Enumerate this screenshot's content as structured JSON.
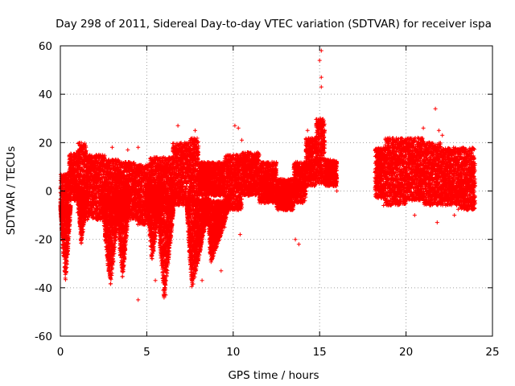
{
  "chart_data": {
    "type": "scatter",
    "title": "Day 298 of 2011, Sidereal Day-to-day VTEC variation (SDTVAR) for receiver ispa",
    "xlabel": "GPS time / hours",
    "ylabel": "SDTVAR / TECUs",
    "xlim": [
      0,
      25
    ],
    "ylim": [
      -60,
      60
    ],
    "xticks": [
      0,
      5,
      10,
      15,
      20,
      25
    ],
    "yticks": [
      -60,
      -40,
      -20,
      0,
      20,
      40,
      60
    ],
    "grid": true,
    "marker": "+",
    "color": "#ff0000",
    "series": [
      {
        "name": "SDTVAR",
        "bands": [
          {
            "t0": 0.0,
            "t1": 0.5,
            "lo": -10,
            "hi": 7
          },
          {
            "t0": 0.5,
            "t1": 1.0,
            "lo": -4,
            "hi": 16
          },
          {
            "t0": 1.0,
            "t1": 1.5,
            "lo": -6,
            "hi": 20
          },
          {
            "t0": 1.5,
            "t1": 2.6,
            "lo": -12,
            "hi": 15
          },
          {
            "t0": 2.6,
            "t1": 3.4,
            "lo": -8,
            "hi": 13
          },
          {
            "t0": 3.4,
            "t1": 4.4,
            "lo": -12,
            "hi": 12
          },
          {
            "t0": 4.4,
            "t1": 5.2,
            "lo": -14,
            "hi": 11
          },
          {
            "t0": 5.2,
            "t1": 6.5,
            "lo": -8,
            "hi": 14
          },
          {
            "t0": 6.5,
            "t1": 7.5,
            "lo": -6,
            "hi": 20
          },
          {
            "t0": 7.5,
            "t1": 8.0,
            "lo": -4,
            "hi": 22
          },
          {
            "t0": 8.0,
            "t1": 9.5,
            "lo": -2,
            "hi": 12
          },
          {
            "t0": 9.5,
            "t1": 10.5,
            "lo": -8,
            "hi": 15
          },
          {
            "t0": 10.5,
            "t1": 11.5,
            "lo": -2,
            "hi": 16
          },
          {
            "t0": 11.5,
            "t1": 12.5,
            "lo": -5,
            "hi": 12
          },
          {
            "t0": 12.5,
            "t1": 13.5,
            "lo": -8,
            "hi": 5
          },
          {
            "t0": 13.5,
            "t1": 14.2,
            "lo": -5,
            "hi": 12
          },
          {
            "t0": 14.2,
            "t1": 14.8,
            "lo": 2,
            "hi": 22
          },
          {
            "t0": 14.8,
            "t1": 15.3,
            "lo": 3,
            "hi": 30
          },
          {
            "t0": 15.3,
            "t1": 16.0,
            "lo": 2,
            "hi": 13
          },
          {
            "t0": 18.2,
            "t1": 18.8,
            "lo": -3,
            "hi": 18
          },
          {
            "t0": 18.8,
            "t1": 20.0,
            "lo": -6,
            "hi": 22
          },
          {
            "t0": 20.0,
            "t1": 21.0,
            "lo": -4,
            "hi": 22
          },
          {
            "t0": 21.0,
            "t1": 22.0,
            "lo": -6,
            "hi": 20
          },
          {
            "t0": 22.0,
            "t1": 23.0,
            "lo": -6,
            "hi": 18
          },
          {
            "t0": 23.0,
            "t1": 24.0,
            "lo": -8,
            "hi": 18
          }
        ],
        "dips": [
          {
            "t0": 0.0,
            "t1": 0.6,
            "tmin": 0.3,
            "min": -38,
            "base": -6
          },
          {
            "t0": 2.4,
            "t1": 3.4,
            "tmin": 2.9,
            "min": -40,
            "base": -2
          },
          {
            "t0": 3.2,
            "t1": 4.0,
            "tmin": 3.6,
            "min": -37,
            "base": 0
          },
          {
            "t0": 5.0,
            "t1": 5.8,
            "tmin": 5.3,
            "min": -30,
            "base": 2
          },
          {
            "t0": 5.6,
            "t1": 6.6,
            "tmin": 6.0,
            "min": -45,
            "base": -2
          },
          {
            "t0": 7.3,
            "t1": 8.6,
            "tmin": 7.6,
            "min": -41,
            "base": -3
          },
          {
            "t0": 8.5,
            "t1": 9.8,
            "tmin": 8.7,
            "min": -30,
            "base": -4
          },
          {
            "t0": 1.0,
            "t1": 1.6,
            "tmin": 1.2,
            "min": -22,
            "base": 0
          }
        ],
        "outliers": [
          [
            15.1,
            58
          ],
          [
            15.0,
            54
          ],
          [
            15.1,
            47
          ],
          [
            15.1,
            43
          ],
          [
            14.2,
            19
          ],
          [
            14.3,
            25
          ],
          [
            10.1,
            27
          ],
          [
            10.3,
            26
          ],
          [
            10.5,
            21
          ],
          [
            6.8,
            27
          ],
          [
            7.8,
            25
          ],
          [
            7.2,
            20
          ],
          [
            4.5,
            18
          ],
          [
            3.9,
            17
          ],
          [
            3.0,
            18
          ],
          [
            21.7,
            34
          ],
          [
            21.0,
            26
          ],
          [
            21.9,
            25
          ],
          [
            22.1,
            23
          ],
          [
            20.5,
            -10
          ],
          [
            21.8,
            -13
          ],
          [
            13.6,
            -20
          ],
          [
            13.8,
            -22
          ],
          [
            10.4,
            -18
          ],
          [
            9.5,
            -15
          ],
          [
            8.2,
            -37
          ],
          [
            4.5,
            -45
          ],
          [
            6.1,
            -43
          ],
          [
            5.5,
            -37
          ],
          [
            9.3,
            -33
          ],
          [
            1.0,
            -9
          ],
          [
            18.7,
            -6
          ],
          [
            24.0,
            -5
          ],
          [
            16.0,
            0
          ],
          [
            22.8,
            -10
          ]
        ]
      }
    ]
  }
}
